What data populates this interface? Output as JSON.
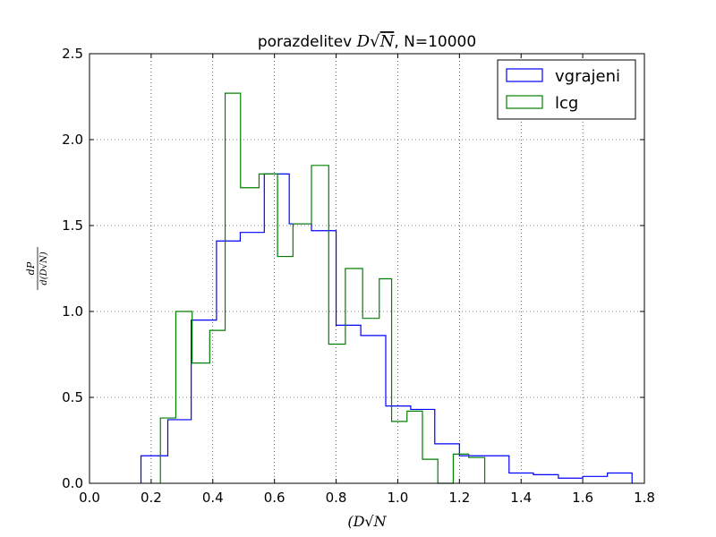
{
  "chart_data": {
    "type": "histogram",
    "title_prefix": "porazdelitev ",
    "title_math_base": "D",
    "title_math_radical": "N",
    "title_suffix": ", N=10000",
    "xlabel": "(D√N",
    "ylabel_numerator": "dP",
    "ylabel_denominator": "d(D√N)",
    "xlim": [
      0.0,
      1.8
    ],
    "ylim": [
      0.0,
      2.5
    ],
    "xticks": [
      0.0,
      0.2,
      0.4,
      0.6,
      0.8,
      1.0,
      1.2,
      1.4,
      1.6,
      1.8
    ],
    "xtick_labels": [
      "0.0",
      "0.2",
      "0.4",
      "0.6",
      "0.8",
      "1.0",
      "1.2",
      "1.4",
      "1.6",
      "1.8"
    ],
    "yticks": [
      0.0,
      0.5,
      1.0,
      1.5,
      2.0,
      2.5
    ],
    "ytick_labels": [
      "0.0",
      "0.5",
      "1.0",
      "1.5",
      "2.0",
      "2.5"
    ],
    "grid": true,
    "legend_position": "top-right",
    "series": [
      {
        "name": "vgrajeni",
        "color": "#0000ff",
        "edges": [
          0.167,
          0.254,
          0.33,
          0.412,
          0.489,
          0.567,
          0.648,
          0.72,
          0.8,
          0.88,
          0.961,
          1.042,
          1.12,
          1.2,
          1.282,
          1.361,
          1.44,
          1.521,
          1.6,
          1.68,
          1.76
        ],
        "values": [
          0.16,
          0.37,
          0.95,
          1.41,
          1.46,
          1.8,
          1.51,
          1.47,
          0.92,
          0.86,
          0.45,
          0.43,
          0.23,
          0.16,
          0.16,
          0.06,
          0.05,
          0.03,
          0.04,
          0.06
        ]
      },
      {
        "name": "lcg",
        "color": "#008000",
        "edges": [
          0.23,
          0.28,
          0.333,
          0.39,
          0.44,
          0.49,
          0.55,
          0.61,
          0.66,
          0.72,
          0.776,
          0.83,
          0.886,
          0.94,
          0.98,
          1.03,
          1.08,
          1.13,
          1.18,
          1.23,
          1.282
        ],
        "values": [
          0.38,
          1.0,
          0.7,
          0.89,
          2.27,
          1.72,
          1.8,
          1.32,
          1.51,
          1.85,
          0.81,
          1.25,
          0.96,
          1.19,
          0.36,
          0.42,
          0.14,
          0.0,
          0.17,
          0.15
        ]
      }
    ]
  }
}
